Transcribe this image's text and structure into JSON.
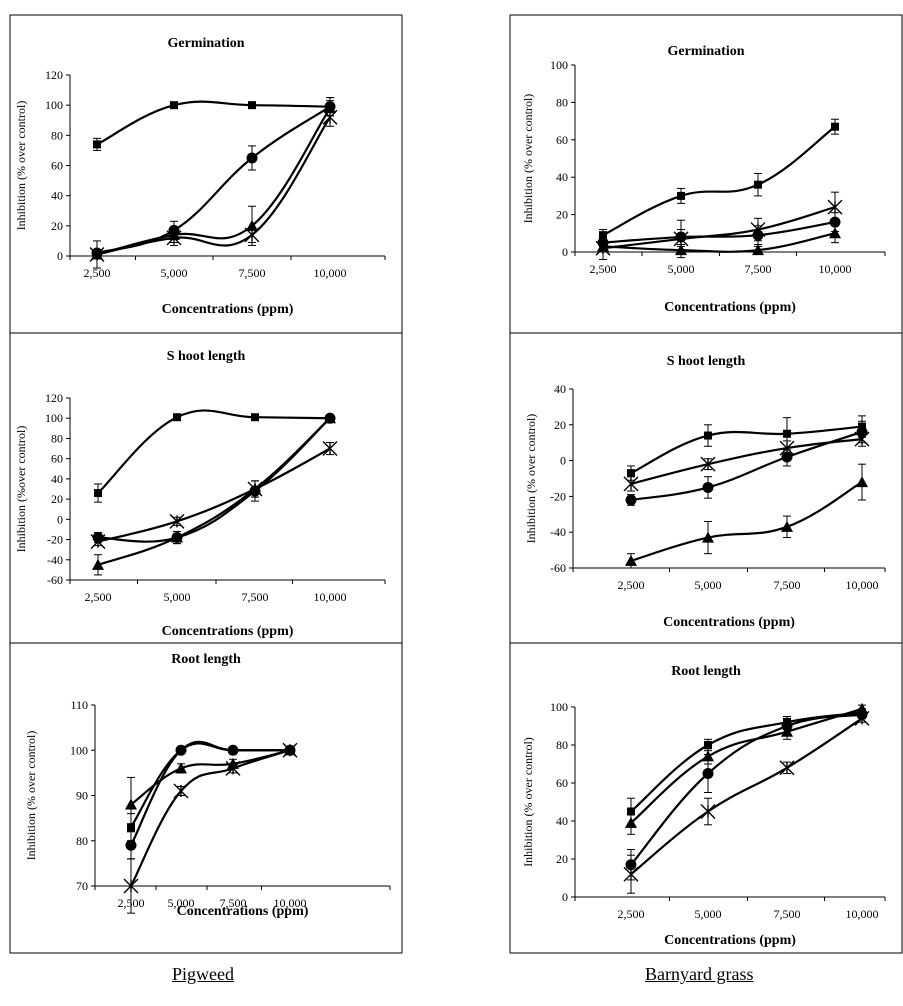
{
  "labels": {
    "left": "Pigweed",
    "right": "Barnyard grass"
  },
  "chart_data": [
    {
      "type": "line",
      "title": "Germination",
      "xlabel": "Concentrations (ppm)",
      "ylabel": "Inhibition (% over control)",
      "categories": [
        "2,500",
        "5,000",
        "7,500",
        "10,000"
      ],
      "ylim": [
        0,
        120
      ],
      "yticks": [
        0,
        20,
        40,
        60,
        80,
        100,
        120
      ],
      "series": [
        {
          "marker": "square",
          "values": [
            74,
            100,
            100,
            99
          ],
          "errors": [
            4,
            0,
            0,
            6
          ]
        },
        {
          "marker": "circle",
          "values": [
            2,
            17,
            65,
            99
          ],
          "errors": [
            2,
            6,
            8,
            6
          ]
        },
        {
          "marker": "triangle",
          "values": [
            1,
            14,
            20,
            98
          ],
          "errors": [
            1,
            5,
            13,
            5
          ]
        },
        {
          "marker": "x",
          "values": [
            1,
            12,
            14,
            92
          ],
          "errors": [
            9,
            5,
            5,
            6
          ]
        }
      ]
    },
    {
      "type": "line",
      "title": "Germination",
      "xlabel": "Concentrations (ppm)",
      "ylabel": "Inhibition (% over control)",
      "categories": [
        "2,500",
        "5,000",
        "7,500",
        "10,000"
      ],
      "ylim": [
        0,
        100
      ],
      "yticks": [
        0,
        20,
        40,
        60,
        80,
        100
      ],
      "series": [
        {
          "marker": "square",
          "values": [
            9,
            30,
            36,
            67
          ],
          "errors": [
            3,
            4,
            6,
            4
          ]
        },
        {
          "marker": "circle",
          "values": [
            5,
            8,
            9,
            16
          ],
          "errors": [
            2,
            4,
            5,
            5
          ]
        },
        {
          "marker": "triangle",
          "values": [
            3,
            1,
            1,
            10
          ],
          "errors": [
            2,
            2,
            2,
            5
          ]
        },
        {
          "marker": "x",
          "values": [
            2,
            7,
            12,
            24
          ],
          "errors": [
            6,
            10,
            6,
            8
          ]
        }
      ]
    },
    {
      "type": "line",
      "title": "S hoot length",
      "xlabel": "Concentrations (ppm)",
      "ylabel": "Inhibition (%over control)",
      "categories": [
        "2,500",
        "5,000",
        "7,500",
        "10,000"
      ],
      "ylim": [
        -60,
        120
      ],
      "yticks": [
        -60,
        -40,
        -20,
        0,
        20,
        40,
        60,
        80,
        100,
        120
      ],
      "series": [
        {
          "marker": "square",
          "values": [
            26,
            101,
            101,
            100
          ],
          "errors": [
            9,
            0,
            0,
            0
          ]
        },
        {
          "marker": "circle",
          "values": [
            -18,
            -18,
            28,
            100
          ],
          "errors": [
            5,
            6,
            10,
            0
          ]
        },
        {
          "marker": "triangle",
          "values": [
            -45,
            -18,
            30,
            100
          ],
          "errors": [
            10,
            6,
            8,
            0
          ]
        },
        {
          "marker": "x",
          "values": [
            -22,
            -2,
            30,
            70
          ],
          "errors": [
            4,
            4,
            8,
            6
          ]
        }
      ]
    },
    {
      "type": "line",
      "title": "S hoot length",
      "xlabel": "Concentrations (ppm)",
      "ylabel": "Inhibition (% over control)",
      "categories": [
        "2,500",
        "5,000",
        "7,500",
        "10,000"
      ],
      "ylim": [
        -60,
        40
      ],
      "yticks": [
        -60,
        -40,
        -20,
        0,
        20,
        40
      ],
      "series": [
        {
          "marker": "square",
          "values": [
            -7,
            14,
            15,
            19
          ],
          "errors": [
            4,
            6,
            9,
            6
          ]
        },
        {
          "marker": "circle",
          "values": [
            -22,
            -15,
            2,
            16
          ],
          "errors": [
            3,
            6,
            5,
            6
          ]
        },
        {
          "marker": "triangle",
          "values": [
            -56,
            -43,
            -37,
            -12
          ],
          "errors": [
            4,
            9,
            6,
            10
          ]
        },
        {
          "marker": "x",
          "values": [
            -13,
            -2,
            7,
            12
          ],
          "errors": [
            4,
            3,
            4,
            4
          ]
        }
      ]
    },
    {
      "type": "line",
      "title": "Root length",
      "xlabel": "Concentrations (ppm)",
      "ylabel": "Inhibition (% over control)",
      "categories": [
        "2,500",
        "5,000",
        "7,500",
        "10,000"
      ],
      "ylim": [
        70,
        110
      ],
      "yticks": [
        70,
        80,
        90,
        100,
        110
      ],
      "series": [
        {
          "marker": "square",
          "values": [
            83,
            100,
            100,
            100
          ],
          "errors": [
            3,
            0,
            0,
            0
          ]
        },
        {
          "marker": "circle",
          "values": [
            79,
            100,
            100,
            100
          ],
          "errors": [
            3,
            0,
            0,
            0
          ]
        },
        {
          "marker": "triangle",
          "values": [
            88,
            96,
            97,
            100
          ],
          "errors": [
            6,
            1,
            1,
            0
          ]
        },
        {
          "marker": "x",
          "values": [
            70,
            91,
            96,
            100
          ],
          "errors": [
            6,
            1,
            1,
            0
          ]
        }
      ]
    },
    {
      "type": "line",
      "title": "Root length",
      "xlabel": "Concentrations (ppm)",
      "ylabel": "Inhibition (% over control)",
      "categories": [
        "2,500",
        "5,000",
        "7,500",
        "10,000"
      ],
      "ylim": [
        0,
        100
      ],
      "yticks": [
        0,
        20,
        40,
        60,
        80,
        100
      ],
      "series": [
        {
          "marker": "square",
          "values": [
            45,
            80,
            92,
            97
          ],
          "errors": [
            7,
            3,
            3,
            2
          ]
        },
        {
          "marker": "circle",
          "values": [
            17,
            65,
            90,
            96
          ],
          "errors": [
            8,
            10,
            4,
            2
          ]
        },
        {
          "marker": "triangle",
          "values": [
            39,
            74,
            87,
            99
          ],
          "errors": [
            6,
            4,
            4,
            2
          ]
        },
        {
          "marker": "x",
          "values": [
            12,
            45,
            68,
            94
          ],
          "errors": [
            10,
            7,
            3,
            2
          ]
        }
      ]
    }
  ]
}
